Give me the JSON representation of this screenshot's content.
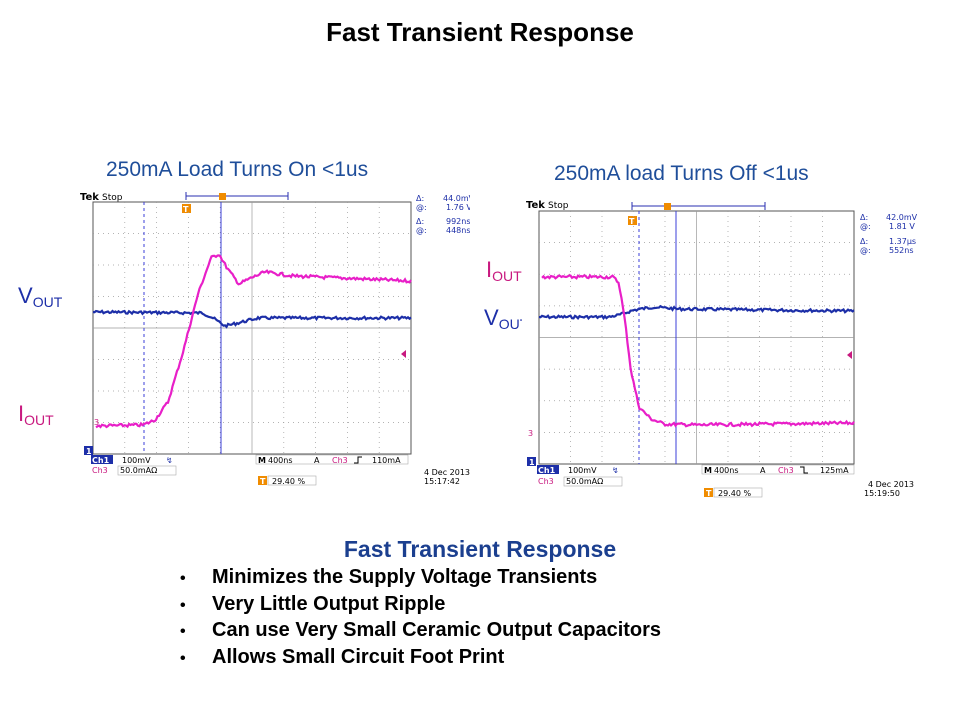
{
  "slide": {
    "title": "Fast Transient Response",
    "bottom_title": "Fast Transient Response",
    "bullets": [
      "Minimizes the Supply Voltage Transients",
      "Very Little Output Ripple",
      "Can use Very Small Ceramic Output Capacitors",
      "Allows Small Circuit Foot Print"
    ],
    "bullet_symbol": "•"
  },
  "labels": {
    "vout_main": "V",
    "vout_sub": "OUT",
    "iout_main": "I",
    "iout_sub": "OUT"
  },
  "scopes": [
    {
      "heading": "250mA Load Turns On <1us",
      "brand": "Tek",
      "state": "Stop",
      "cursor_readout": {
        "delta_v": "44.0mV",
        "at_v": "1.76 V",
        "delta_t": "992ns",
        "at_t": "448ns"
      },
      "ch1": {
        "name": "Ch1",
        "scale": "100mV"
      },
      "ch3": {
        "name": "Ch3",
        "scale": "50.0mAΩ"
      },
      "timebase": "400ns",
      "trigger": {
        "mode": "A",
        "source": "Ch3",
        "slope": "rising",
        "level": "110mA"
      },
      "trigger_position": "29.40 %",
      "date": "4 Dec  2013",
      "time": "15:17:42"
    },
    {
      "heading": "250mA load Turns Off <1us",
      "brand": "Tek",
      "state": "Stop",
      "cursor_readout": {
        "delta_v": "42.0mV",
        "at_v": "1.81 V",
        "delta_t": "1.37µs",
        "at_t": "552ns"
      },
      "ch1": {
        "name": "Ch1",
        "scale": "100mV"
      },
      "ch3": {
        "name": "Ch3",
        "scale": "50.0mAΩ"
      },
      "timebase": "400ns",
      "trigger": {
        "mode": "A",
        "source": "Ch3",
        "slope": "falling",
        "level": "125mA"
      },
      "trigger_position": "29.40 %",
      "date": "4 Dec  2013",
      "time": "15:19:50"
    }
  ],
  "colors": {
    "heading_blue": "#1f4e9a",
    "vout_trace": "#1d2fa8",
    "iout_trace": "#e81fc8",
    "cursor_line": "#3b3fd8",
    "trigger_orange": "#f08c00"
  }
}
